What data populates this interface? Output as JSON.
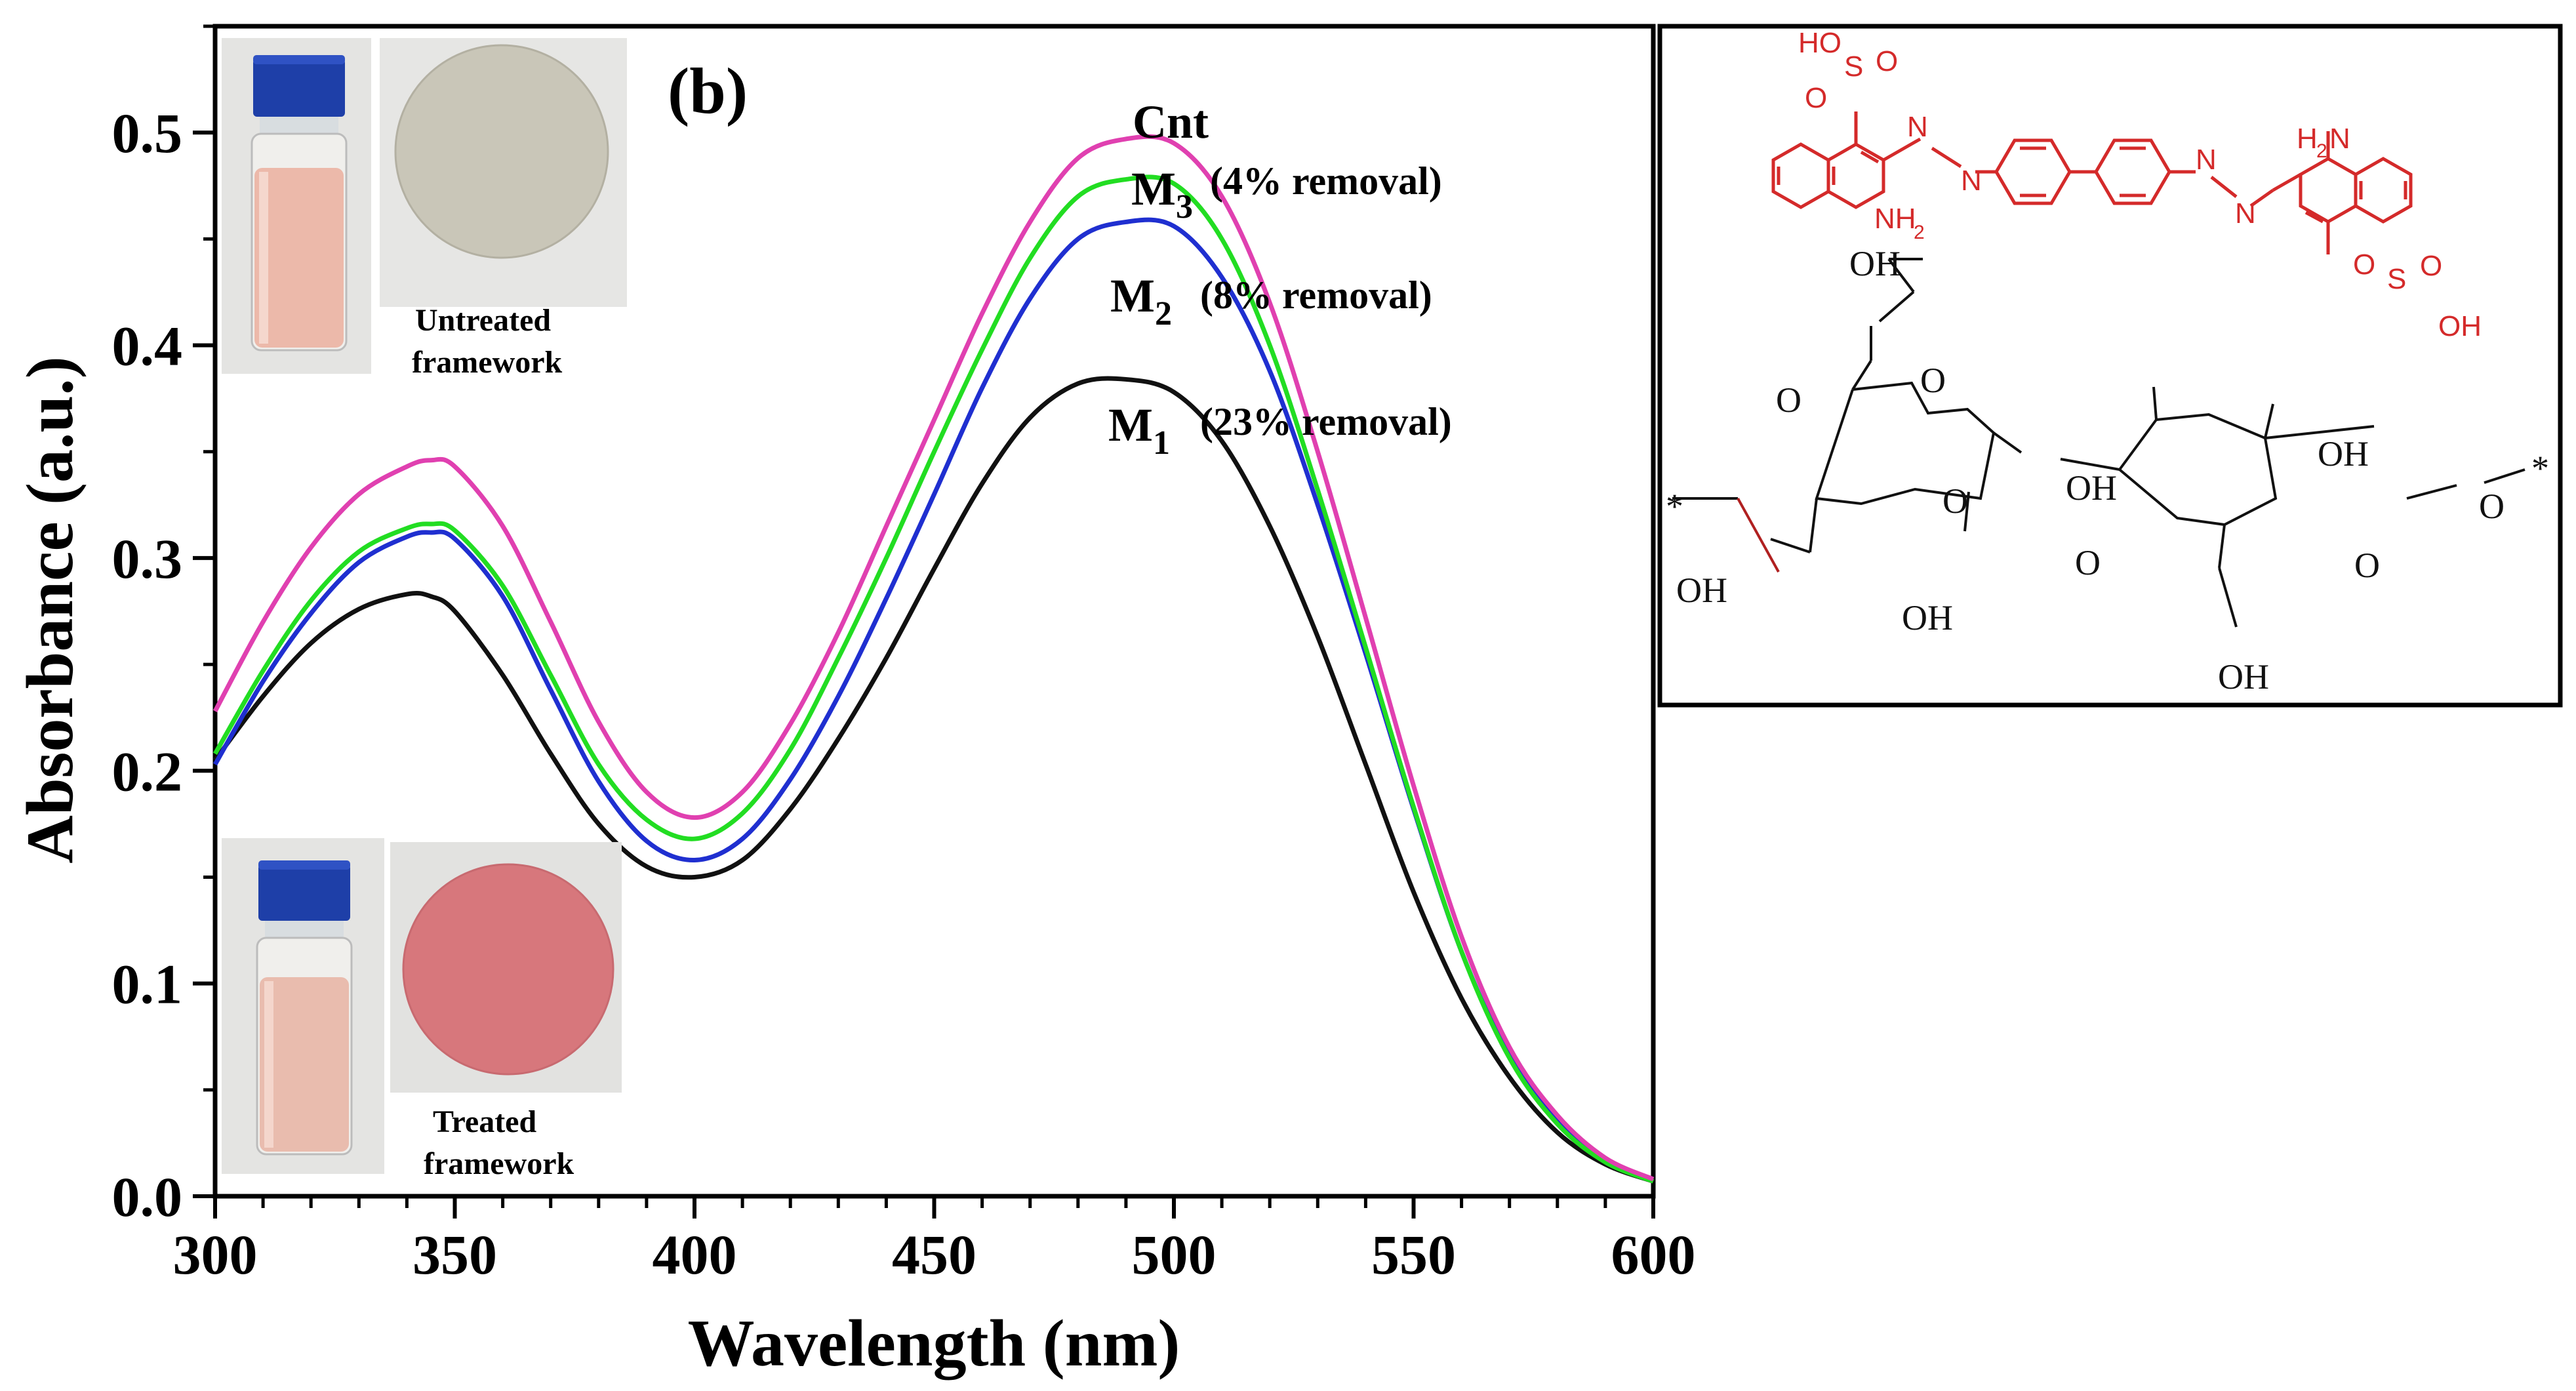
{
  "chart_data": {
    "type": "line",
    "panel_label": "(b)",
    "xlabel": "Wavelength (nm)",
    "ylabel": "Absorbance (a.u.)",
    "xlim": [
      300,
      600
    ],
    "ylim": [
      0,
      0.55
    ],
    "xticks": [
      300,
      350,
      400,
      450,
      500,
      550,
      600
    ],
    "yticks": [
      0.0,
      0.1,
      0.2,
      0.3,
      0.4,
      0.5
    ],
    "xtick_labels": [
      "300",
      "350",
      "400",
      "450",
      "500",
      "550",
      "600"
    ],
    "ytick_labels": [
      "0.0",
      "0.1",
      "0.2",
      "0.3",
      "0.4",
      "0.5"
    ],
    "x": [
      300,
      310,
      320,
      330,
      340,
      345,
      350,
      360,
      370,
      380,
      390,
      400,
      410,
      420,
      430,
      440,
      450,
      460,
      470,
      480,
      490,
      500,
      510,
      520,
      530,
      540,
      550,
      560,
      570,
      580,
      590,
      600
    ],
    "series": [
      {
        "name": "Cnt",
        "color": "#e040b0",
        "label_sub": "",
        "annotation": "",
        "values": [
          0.228,
          0.27,
          0.305,
          0.33,
          0.343,
          0.346,
          0.343,
          0.315,
          0.27,
          0.223,
          0.19,
          0.178,
          0.19,
          0.222,
          0.265,
          0.315,
          0.365,
          0.415,
          0.458,
          0.488,
          0.497,
          0.495,
          0.47,
          0.42,
          0.35,
          0.272,
          0.193,
          0.122,
          0.07,
          0.038,
          0.018,
          0.008
        ]
      },
      {
        "name": "M",
        "color": "#22dd22",
        "label_sub": "3",
        "annotation": "(4% removal)",
        "values": [
          0.208,
          0.247,
          0.28,
          0.303,
          0.314,
          0.316,
          0.313,
          0.287,
          0.245,
          0.203,
          0.177,
          0.168,
          0.18,
          0.21,
          0.253,
          0.3,
          0.35,
          0.398,
          0.441,
          0.47,
          0.478,
          0.476,
          0.45,
          0.4,
          0.332,
          0.258,
          0.183,
          0.115,
          0.065,
          0.034,
          0.016,
          0.007
        ]
      },
      {
        "name": "M",
        "color": "#1f2fd0",
        "label_sub": "2",
        "annotation": "(8% removal)",
        "values": [
          0.203,
          0.242,
          0.274,
          0.298,
          0.31,
          0.312,
          0.309,
          0.282,
          0.238,
          0.195,
          0.167,
          0.158,
          0.168,
          0.196,
          0.235,
          0.281,
          0.33,
          0.38,
          0.422,
          0.45,
          0.458,
          0.456,
          0.432,
          0.388,
          0.325,
          0.255,
          0.182,
          0.115,
          0.066,
          0.035,
          0.017,
          0.008
        ]
      },
      {
        "name": "M",
        "color": "#111111",
        "label_sub": "1",
        "annotation": "(23% removal)",
        "values": [
          0.205,
          0.235,
          0.26,
          0.276,
          0.283,
          0.282,
          0.275,
          0.245,
          0.208,
          0.175,
          0.155,
          0.15,
          0.158,
          0.182,
          0.215,
          0.253,
          0.295,
          0.335,
          0.366,
          0.382,
          0.384,
          0.378,
          0.355,
          0.315,
          0.263,
          0.203,
          0.143,
          0.093,
          0.056,
          0.03,
          0.015,
          0.007
        ]
      }
    ]
  },
  "insets": {
    "untreated_caption": [
      "Untreated",
      "framework"
    ],
    "treated_caption": [
      "Treated",
      "framework"
    ]
  },
  "structure": {
    "dye_labels": [
      "HO",
      "S",
      "O",
      "O",
      "N",
      "N",
      "NH",
      "2",
      "H",
      "2",
      "N",
      "N",
      "N",
      "S",
      "O",
      "O",
      "OH"
    ],
    "cellulose_labels": [
      "OH",
      "O",
      "O",
      "*",
      "OH",
      "OH",
      "O",
      "O",
      "OH",
      "OH",
      "O",
      "O",
      "*",
      "OH"
    ]
  },
  "colors": {
    "dye": "#d42a2a",
    "frame": "#000000",
    "vial_cap": "#1e3fa8",
    "untreated_disc": "#c9c6b8",
    "treated_disc": "#d7777c"
  }
}
